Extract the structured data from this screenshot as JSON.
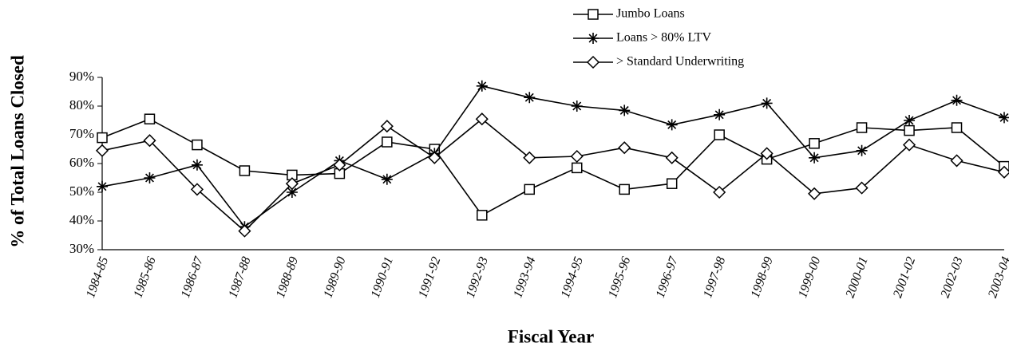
{
  "chart_data": {
    "type": "line",
    "y_label": "% of Total Loans Closed",
    "x_label": "Fiscal Year",
    "categories": [
      "1984-85",
      "1985-86",
      "1986-87",
      "1987-88",
      "1988-89",
      "1989-90",
      "1990-91",
      "1991-92",
      "1992-93",
      "1993-94",
      "1994-95",
      "1995-96",
      "1996-97",
      "1997-98",
      "1998-99",
      "1999-00",
      "2000-01",
      "2001-02",
      "2002-03",
      "2003-04"
    ],
    "series": [
      {
        "name": "Jumbo Loans",
        "color": "#000000",
        "marker": "square",
        "values": [
          69,
          75.5,
          66.5,
          57.5,
          56,
          56.5,
          67.5,
          65,
          42,
          51,
          58.5,
          51,
          53,
          70,
          61.5,
          67,
          72.5,
          71.5,
          72.5,
          59
        ]
      },
      {
        "name": "Loans > 80% LTV",
        "color": "#000000",
        "marker": "star",
        "values": [
          52,
          55,
          59.5,
          38,
          50,
          61,
          54.5,
          63.5,
          87,
          83,
          80,
          78.5,
          73.5,
          77,
          81,
          62,
          64.5,
          75,
          82,
          76
        ]
      },
      {
        "name": "> Standard Underwriting",
        "color": "#000000",
        "marker": "diamond",
        "values": [
          64.5,
          68,
          51,
          36.5,
          53,
          59.5,
          73,
          62,
          75.5,
          62,
          62.5,
          65.5,
          62,
          50,
          63.5,
          49.5,
          51.5,
          66.5,
          61,
          57
        ]
      }
    ],
    "ylim": [
      30,
      90
    ],
    "yticks": [
      {
        "value": 30,
        "label": "30%"
      },
      {
        "value": 40,
        "label": "40%"
      },
      {
        "value": 50,
        "label": "50%"
      },
      {
        "value": 60,
        "label": "60%"
      },
      {
        "value": 70,
        "label": "70%"
      },
      {
        "value": 80,
        "label": "80%"
      },
      {
        "value": 90,
        "label": "90%"
      }
    ],
    "grid": false,
    "legend": "top-right"
  }
}
